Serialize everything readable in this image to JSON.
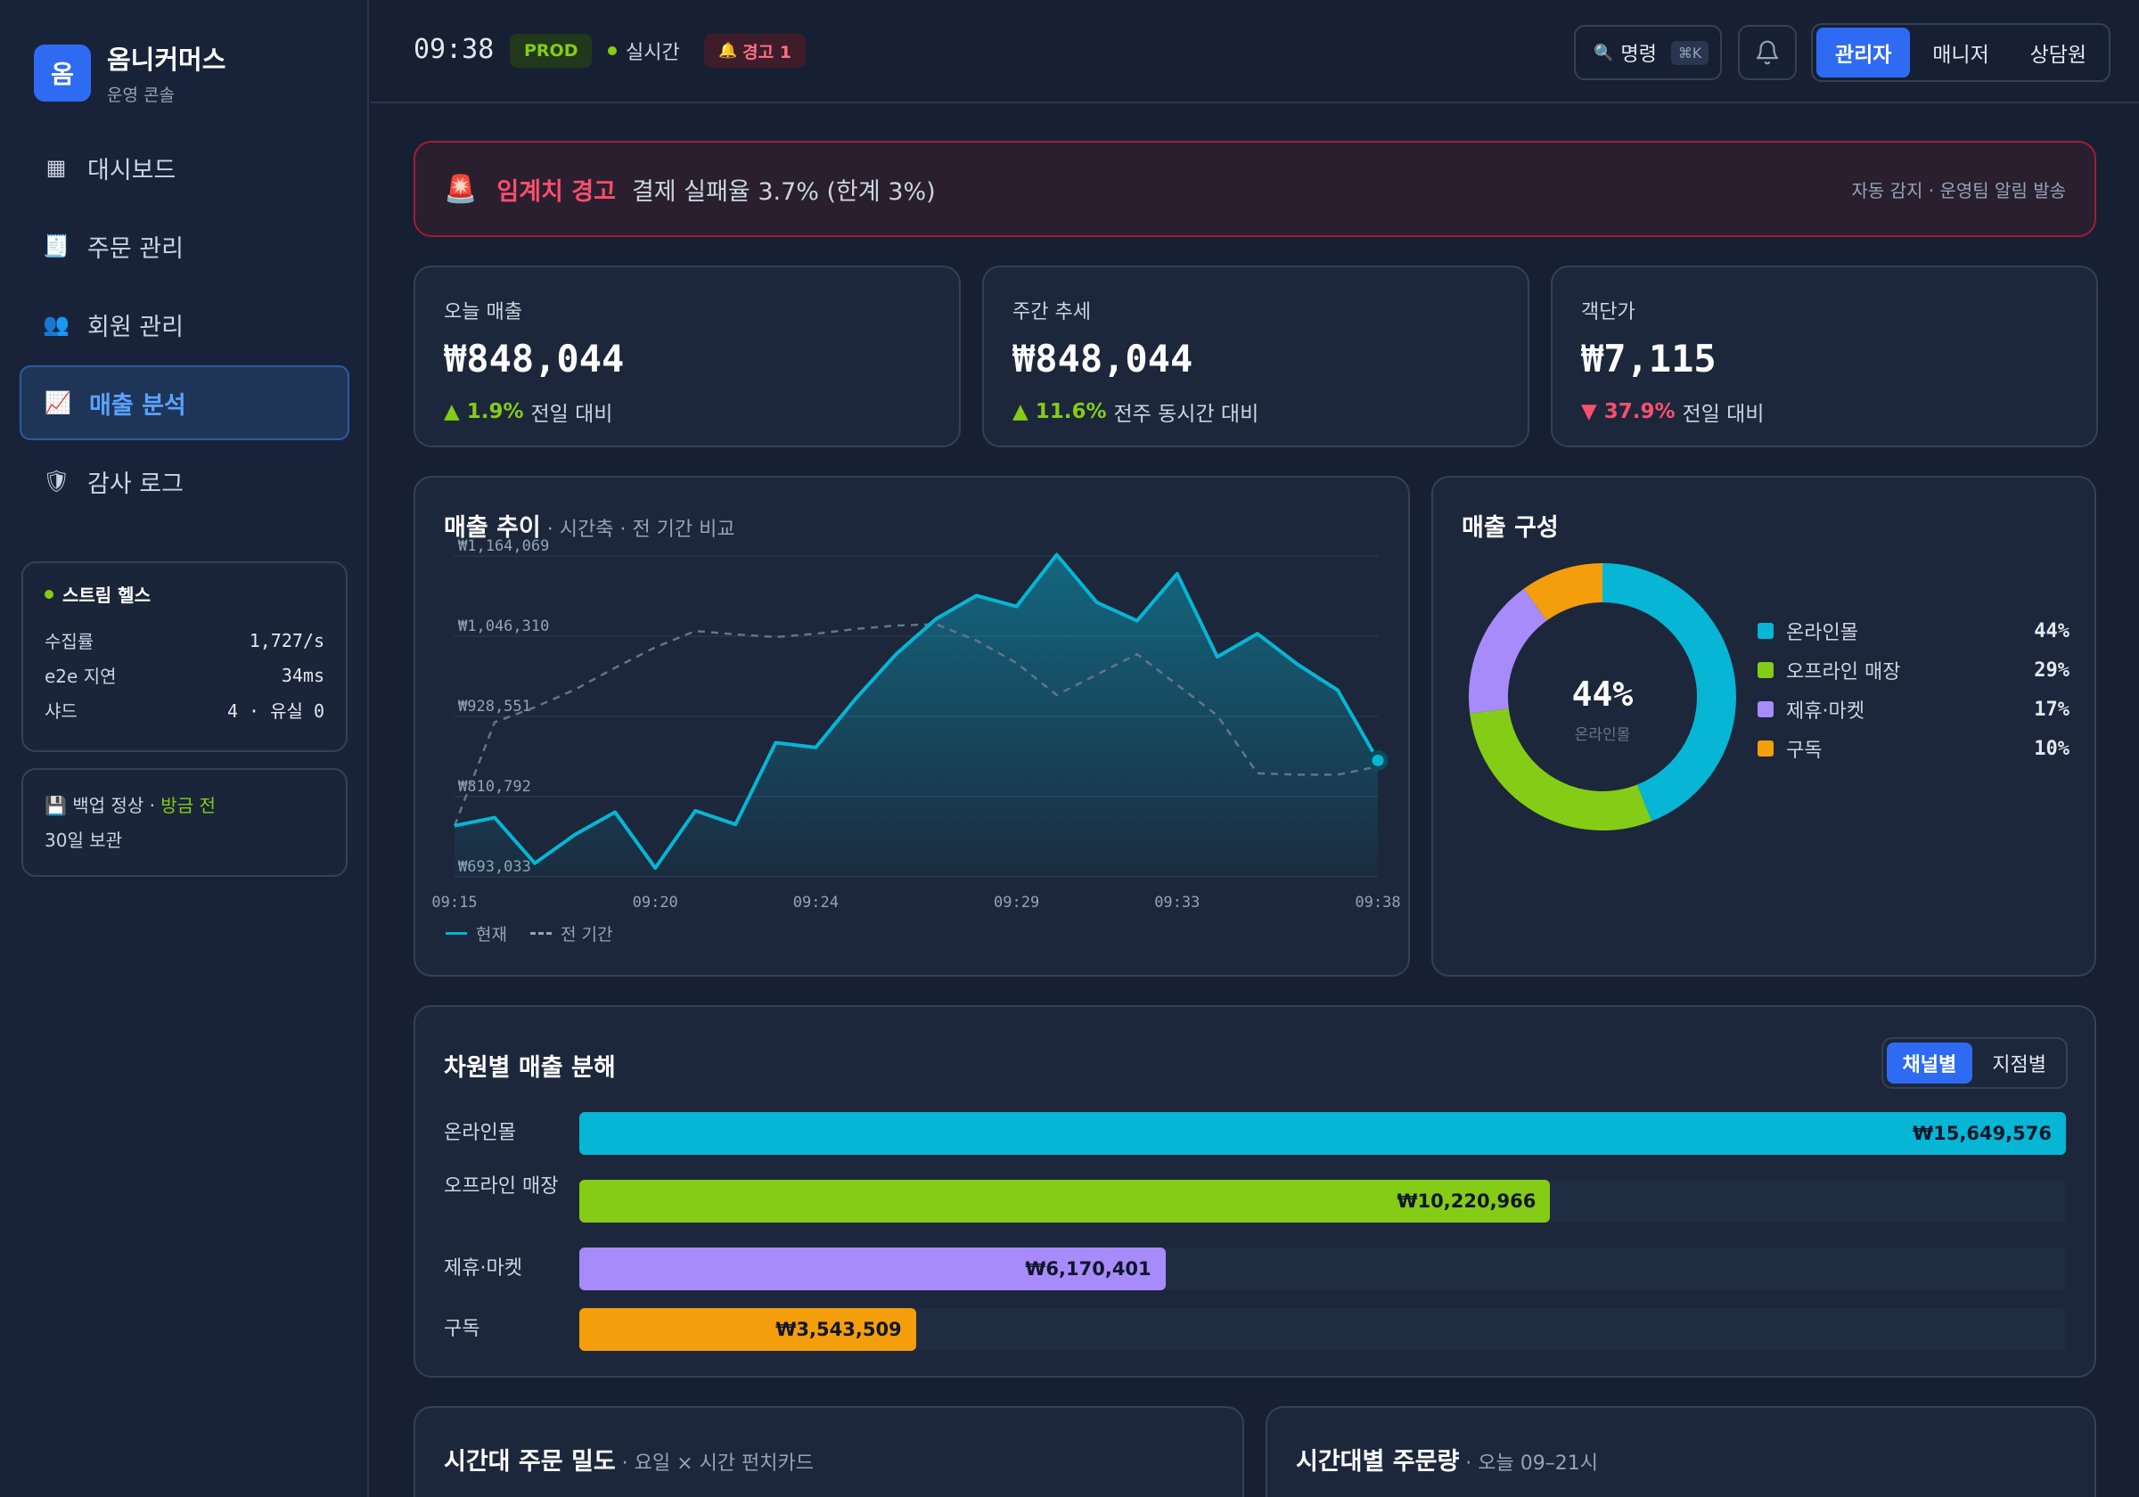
{
  "brand": {
    "logo": "옴",
    "title": "옴니커머스",
    "subtitle": "운영 콘솔"
  },
  "nav": [
    {
      "icon": "▦",
      "label": "대시보드"
    },
    {
      "icon": "🧾",
      "label": "주문 관리"
    },
    {
      "icon": "👥",
      "label": "회원 관리"
    },
    {
      "icon": "📈",
      "label": "매출 분석",
      "active": true
    },
    {
      "icon": "🛡",
      "label": "감사 로그"
    }
  ],
  "stream_health": {
    "title": "스트림 헬스",
    "rows": [
      {
        "label": "수집률",
        "value": "1,727/s"
      },
      {
        "label": "e2e 지연",
        "value": "34ms"
      },
      {
        "label": "샤드",
        "value": "4 · 유실 0"
      }
    ]
  },
  "backup": {
    "icon": "💾",
    "text": "백업 정상 · ",
    "highlight": "방금 전",
    "retention": "30일 보관"
  },
  "topbar": {
    "clock": "09:38",
    "env": "PROD",
    "live": "실시간",
    "warning": "경고 1",
    "warning_icon": "🔔",
    "command": "명령",
    "command_icon": "🔍",
    "shortcut": "⌘K",
    "roles": [
      "관리자",
      "매니저",
      "상담원"
    ],
    "active_role": 0
  },
  "alert": {
    "icon": "🚨",
    "title": "임계치 경고",
    "message": "결제 실패율 3.7% (한계 3%)",
    "right": "자동 감지 · 운영팀 알림 발송"
  },
  "kpis": [
    {
      "label": "오늘 매출",
      "value": "₩848,044",
      "direction": "up",
      "delta": "1.9%",
      "note": "전일 대비"
    },
    {
      "label": "주간 추세",
      "value": "₩848,044",
      "direction": "up",
      "delta": "11.6%",
      "note": "전주 동시간 대비"
    },
    {
      "label": "객단가",
      "value": "₩7,115",
      "direction": "down",
      "delta": "37.9%",
      "note": "전일 대비"
    }
  ],
  "trend": {
    "title": "매출 추이",
    "subtitle": " · 시간축 · 전 기간 비교",
    "legend_current": "현재",
    "legend_previous": "전 기간"
  },
  "chart_data": [
    {
      "type": "line",
      "title": "매출 추이",
      "y_tick_labels": [
        "₩1,164,069",
        "₩1,046,310",
        "₩928,551",
        "₩810,792",
        "₩693,033"
      ],
      "y_ticks": [
        1164069,
        1046310,
        928551,
        810792,
        693033
      ],
      "ylim": [
        693033,
        1164069
      ],
      "x_tick_labels": [
        "09:15",
        "09:20",
        "09:24",
        "09:29",
        "09:33",
        "09:38"
      ],
      "x_ticks": [
        0,
        5,
        9,
        14,
        18,
        23
      ],
      "x": [
        0,
        1,
        2,
        3,
        4,
        5,
        6,
        7,
        8,
        9,
        10,
        11,
        12,
        13,
        14,
        15,
        16,
        17,
        18,
        19,
        20,
        21,
        22,
        23
      ],
      "series": [
        {
          "name": "현재",
          "style": "solid-area",
          "color": "#06b6d4",
          "values": [
            768000,
            780000,
            713000,
            755000,
            788000,
            706000,
            790000,
            770000,
            890000,
            883000,
            955000,
            1020000,
            1072000,
            1106000,
            1090000,
            1166000,
            1096000,
            1069000,
            1138000,
            1016000,
            1050000,
            1005000,
            967000,
            864000
          ]
        },
        {
          "name": "전 기간",
          "style": "dashed",
          "color": "#64748b",
          "values": [
            768000,
            920000,
            942000,
            968000,
            1000000,
            1030000,
            1054000,
            1049000,
            1045000,
            1050000,
            1057000,
            1062000,
            1064000,
            1040000,
            1007000,
            960000,
            990000,
            1020000,
            975000,
            930000,
            845000,
            843000,
            843000,
            855000
          ]
        }
      ],
      "grid": true
    },
    {
      "type": "pie",
      "title": "매출 구성",
      "center_value": "44%",
      "center_label": "온라인몰",
      "slices": [
        {
          "label": "온라인몰",
          "value": 44,
          "display": "44%",
          "color": "#06b6d4"
        },
        {
          "label": "오프라인 매장",
          "value": 29,
          "display": "29%",
          "color": "#84cc16"
        },
        {
          "label": "제휴·마켓",
          "value": 17,
          "display": "17%",
          "color": "#a78bfa"
        },
        {
          "label": "구독",
          "value": 10,
          "display": "10%",
          "color": "#f59e0b"
        }
      ]
    },
    {
      "type": "bar",
      "title": "차원별 매출 분해",
      "orientation": "horizontal",
      "categories": [
        "온라인몰",
        "오프라인 매장",
        "제휴·마켓",
        "구독"
      ],
      "values": [
        15649576,
        10220966,
        6170401,
        3543509
      ],
      "value_labels": [
        "₩15,649,576",
        "₩10,220,966",
        "₩6,170,401",
        "₩3,543,509"
      ],
      "colors": [
        "#06b6d4",
        "#84cc16",
        "#a78bfa",
        "#f59e0b"
      ]
    }
  ],
  "composition": {
    "title": "매출 구성"
  },
  "breakdown": {
    "title": "차원별 매출 분해",
    "tabs": [
      "채널별",
      "지점별"
    ],
    "active_tab": 0
  },
  "bottom_panels": [
    {
      "title": "시간대 주문 밀도",
      "subtitle": " · 요일 × 시간 펀치카드"
    },
    {
      "title": "시간대별 주문량",
      "subtitle": " · 오늘 09–21시"
    }
  ]
}
